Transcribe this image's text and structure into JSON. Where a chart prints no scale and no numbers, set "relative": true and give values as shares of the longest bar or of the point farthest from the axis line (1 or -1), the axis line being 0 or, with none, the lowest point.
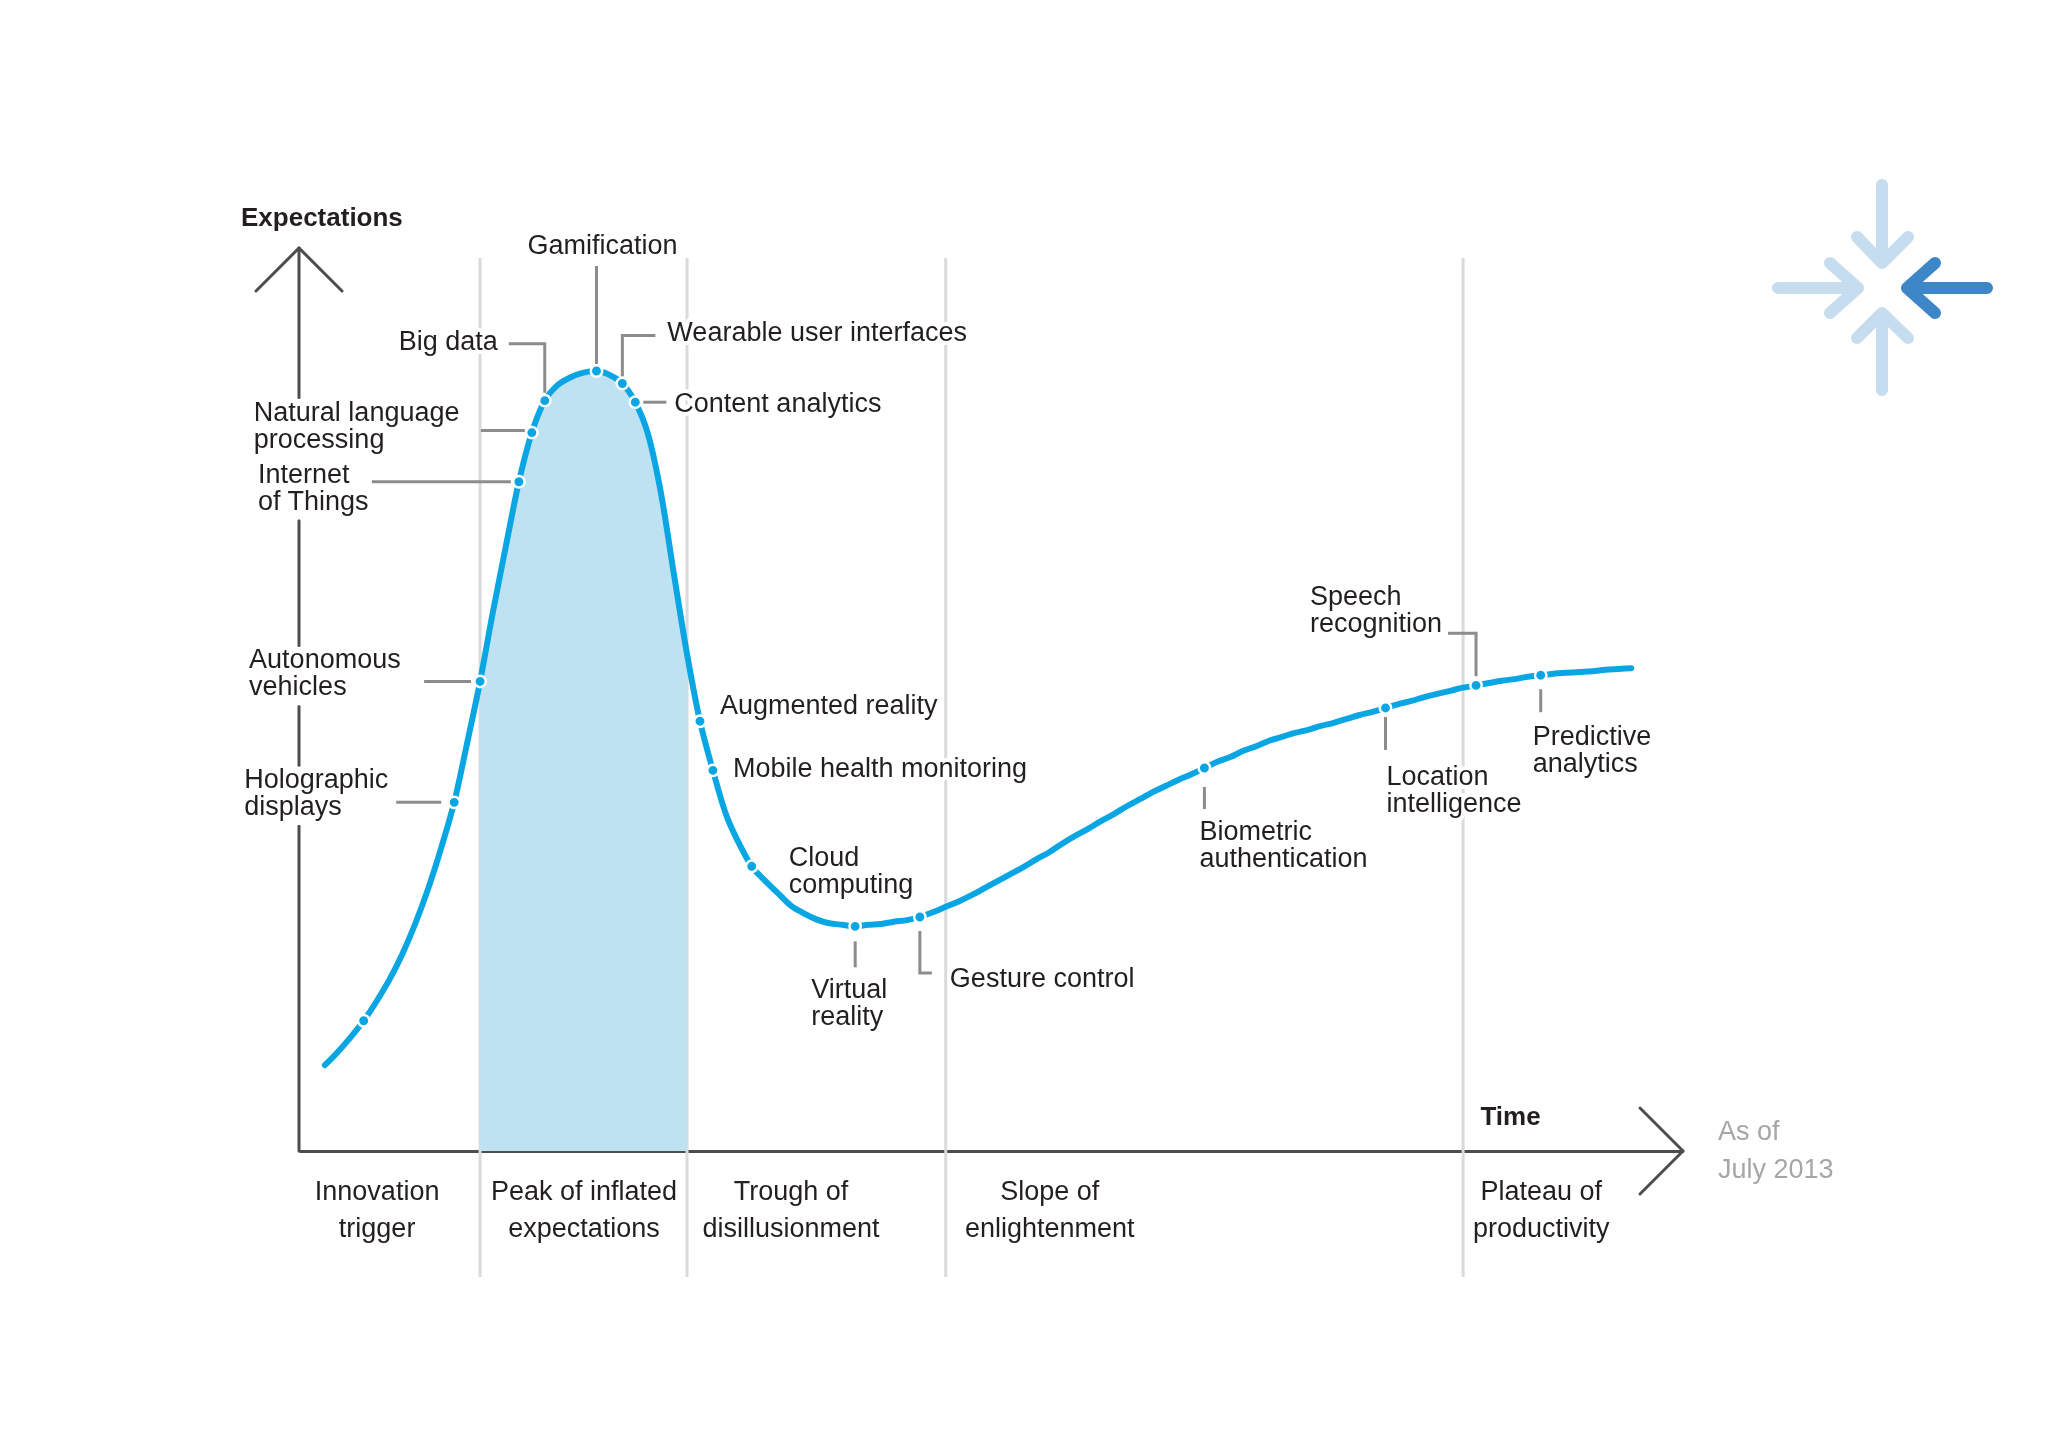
{
  "chart_data": {
    "type": "line",
    "relative": true,
    "xlabel": "Time",
    "tick_labels": "x",
    "categories": [
      null,
      null,
      null,
      null,
      null,
      null,
      "Innovation\ntrigger",
      null,
      null,
      null,
      null,
      null,
      null,
      null,
      null,
      null,
      null,
      null,
      null,
      null,
      null,
      null,
      "Peak of inflated\nexpectations",
      null,
      null,
      null,
      null,
      null,
      null,
      null,
      null,
      null,
      null,
      null,
      null,
      null,
      null,
      null,
      "Trough of\ndisillusionment",
      null,
      null,
      null,
      null,
      null,
      null,
      null,
      null,
      null,
      null,
      null,
      null,
      null,
      null,
      null,
      null,
      null,
      null,
      null,
      "Slope of\nenlightenment",
      null,
      null,
      null,
      null,
      null,
      null,
      null,
      null,
      null,
      null,
      null,
      null,
      null,
      null,
      null,
      null,
      null,
      null,
      null,
      null,
      null,
      null,
      null,
      null,
      null,
      null,
      null,
      null,
      null,
      null,
      null,
      null,
      null,
      null,
      null,
      null,
      null,
      "Plateau of\nproductivity",
      null,
      null,
      null,
      null,
      null,
      null,
      null,
      null,
      null,
      null,
      null
    ],
    "series": [
      {
        "type": "area",
        "color": "#bfe2f3",
        "values": [
          null,
          null,
          null,
          null,
          null,
          null,
          null,
          null,
          null,
          null,
          null,
          null,
          null,
          null,
          0.602,
          0.692,
          0.776,
          0.858,
          0.921,
          0.962,
          0.982,
          0.992,
          0.998,
          1,
          0.995,
          0.984,
          0.96,
          0.918,
          0.842,
          0.738,
          0.637,
          null,
          null,
          null,
          null,
          null,
          null,
          null,
          null,
          null,
          null,
          null,
          null,
          null,
          null,
          null,
          null,
          null,
          null,
          null,
          null,
          null,
          null,
          null,
          null,
          null,
          null,
          null,
          null,
          null,
          null,
          null,
          null,
          null,
          null,
          null,
          null,
          null,
          null,
          null,
          null,
          null,
          null,
          null,
          null,
          null,
          null,
          null,
          null,
          null,
          null,
          null,
          null,
          null,
          null,
          null,
          null,
          null,
          null,
          null,
          null,
          null,
          null,
          null,
          null,
          null,
          null,
          null,
          null,
          null,
          null,
          null,
          null,
          null,
          null,
          null,
          null,
          null
        ]
      },
      {
        "color": "#0aa6e3",
        "values": [
          null,
          null,
          0.11,
          0.127,
          0.146,
          0.167,
          0.192,
          0.22,
          0.253,
          0.292,
          0.337,
          0.389,
          0.447,
          0.523,
          0.602,
          0.692,
          0.776,
          0.858,
          0.921,
          0.962,
          0.982,
          0.992,
          0.998,
          1,
          0.995,
          0.984,
          0.96,
          0.918,
          0.842,
          0.738,
          0.637,
          0.551,
          0.488,
          0.432,
          0.395,
          0.365,
          0.347,
          0.331,
          0.315,
          0.305,
          0.297,
          0.292,
          0.29,
          0.288,
          0.29,
          0.291,
          0.294,
          0.296,
          0.3,
          0.306,
          0.313,
          0.32,
          0.328,
          0.337,
          0.346,
          0.355,
          0.364,
          0.374,
          0.383,
          0.394,
          0.404,
          0.413,
          0.423,
          0.432,
          0.442,
          0.451,
          0.46,
          0.468,
          0.476,
          0.483,
          0.491,
          0.499,
          0.505,
          0.513,
          0.519,
          0.526,
          0.531,
          0.536,
          0.54,
          0.545,
          0.549,
          0.554,
          0.559,
          0.563,
          0.568,
          0.573,
          0.577,
          0.582,
          0.586,
          0.59,
          0.594,
          0.597,
          0.6,
          0.603,
          0.605,
          0.608,
          0.61,
          0.612,
          0.613,
          0.614,
          0.615,
          0.617,
          0.618,
          0.619,
          null,
          null,
          null,
          null
        ]
      },
      {
        "type": "scatter",
        "color": "#0aa6e3",
        "values": [
          null,
          null,
          null,
          null,
          null,
          0.167,
          null,
          null,
          null,
          null,
          null,
          null,
          0.447,
          null,
          0.602,
          null,
          null,
          0.858,
          0.921,
          0.962,
          null,
          null,
          null,
          1,
          null,
          0.984,
          0.96,
          null,
          null,
          null,
          null,
          0.551,
          0.488,
          null,
          null,
          0.365,
          null,
          null,
          null,
          null,
          null,
          null,
          null,
          0.288,
          null,
          null,
          null,
          null,
          0.3,
          null,
          null,
          null,
          null,
          null,
          null,
          null,
          null,
          null,
          null,
          null,
          null,
          null,
          null,
          null,
          null,
          null,
          null,
          null,
          null,
          null,
          0.491,
          null,
          null,
          null,
          null,
          null,
          null,
          null,
          null,
          null,
          null,
          null,
          null,
          null,
          0.568,
          null,
          null,
          null,
          null,
          null,
          null,
          0.597,
          null,
          null,
          null,
          null,
          0.61,
          null,
          null,
          null,
          null,
          null,
          null,
          null,
          null,
          null,
          null,
          null
        ]
      }
    ],
    "annotations": [
      "Expectations",
      "Holographic\ndisplays",
      "Autonomous\nvehicles",
      "Internet\nof Things",
      "Natural language\nprocessing",
      "Big data",
      "Gamification",
      "Wearable user interfaces",
      "Content analytics",
      "Augmented reality",
      "Mobile health monitoring",
      "Cloud\ncomputing",
      "Virtual\nreality",
      "Gesture control",
      "Biometric\nauthentication",
      "Location\nintelligence",
      "Speech\nrecognition",
      "Predictive\nanalytics",
      "As of\nJuly 2013"
    ]
  }
}
